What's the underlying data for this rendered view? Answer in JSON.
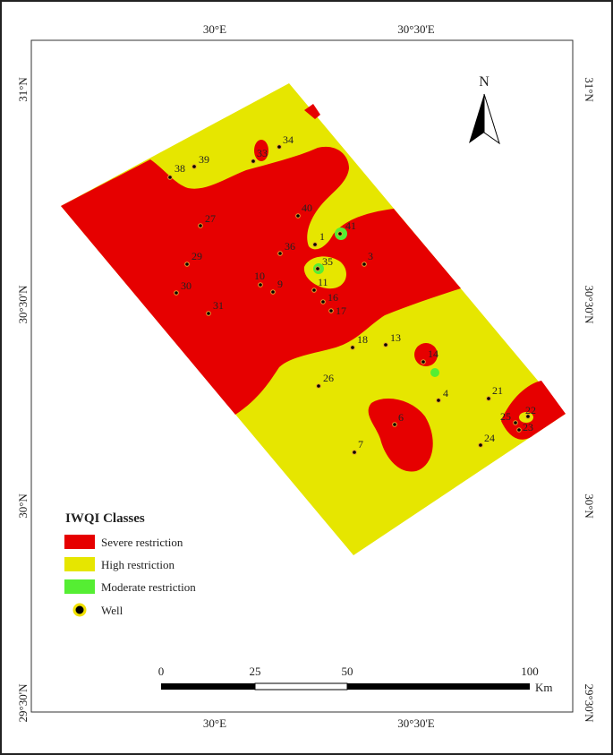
{
  "graticule": {
    "lon": [
      "30°E",
      "30°30'E"
    ],
    "lat": [
      "31°N",
      "30°30'N",
      "30°N",
      "29°30'N"
    ]
  },
  "north_label": "N",
  "wells": [
    "39",
    "38",
    "33",
    "34",
    "27",
    "40",
    "41",
    "1",
    "36",
    "29",
    "35",
    "3",
    "10",
    "9",
    "30",
    "11",
    "16",
    "31",
    "17",
    "18",
    "13",
    "14",
    "26",
    "4",
    "21",
    "6",
    "22",
    "25",
    "23",
    "24",
    "7"
  ],
  "legend": {
    "title": "IWQI Classes",
    "items": [
      "Severe restriction",
      "High restriction",
      "Moderate restriction",
      "Well"
    ]
  },
  "scale": {
    "ticks": [
      "0",
      "25",
      "50",
      "100"
    ],
    "unit": "Km"
  }
}
